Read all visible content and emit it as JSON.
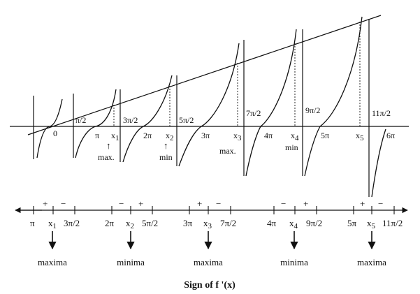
{
  "graph": {
    "origin_label": "0",
    "asymptote_labels": [
      "π/2",
      "3π/2",
      "5π/2",
      "7π/2",
      "9π/2",
      "11π/2"
    ],
    "axis_labels": [
      "π",
      "x",
      "2π",
      "x",
      "3π",
      "x",
      "4π",
      "x",
      "5π",
      "x",
      "6π"
    ],
    "subscripts": [
      "1",
      "2",
      "3",
      "4",
      "5"
    ],
    "annotations": [
      "max.",
      "min",
      "max.",
      "min"
    ],
    "arrow_glyph": "↑"
  },
  "sign_line": {
    "tick_labels": [
      "π",
      "x",
      "3π/2",
      "2π",
      "x",
      "5π/2",
      "3π",
      "x",
      "7π/2",
      "4π",
      "x",
      "9π/2",
      "5π",
      "x",
      "11π/2"
    ],
    "subscripts": [
      "1",
      "2",
      "3",
      "4",
      "5"
    ],
    "signs": [
      [
        "+",
        "−"
      ],
      [
        "−",
        "+"
      ],
      [
        "+",
        "−"
      ],
      [
        "−",
        "+"
      ],
      [
        "+",
        "−"
      ]
    ],
    "extrema": [
      "maxima",
      "minima",
      "maxima",
      "minima",
      "maxima"
    ],
    "caption": "Sign of f '(x)"
  }
}
